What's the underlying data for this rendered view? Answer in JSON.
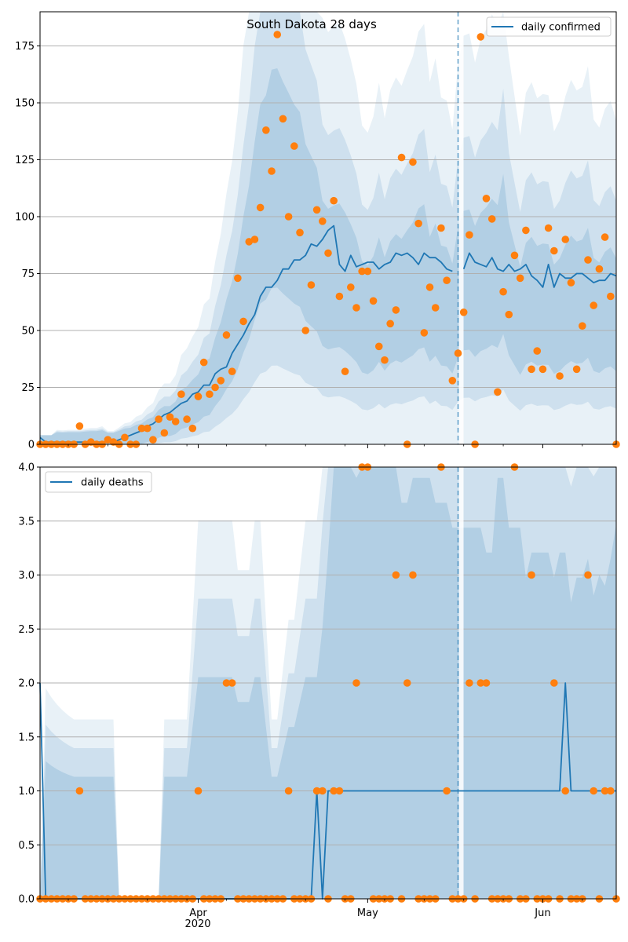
{
  "title": "South Dakota 28 days",
  "colors": {
    "line": "#1f77b4",
    "points": "#ff7f0e",
    "band": "#1f77b4",
    "grid": "#b0b0b0",
    "divider": "#1f77b4"
  },
  "x_axis": {
    "ticks": [
      {
        "label": "Apr",
        "day": 28
      },
      {
        "label": "May",
        "day": 58
      },
      {
        "label": "Jun",
        "day": 89
      }
    ],
    "year_label": "2020",
    "range_days": [
      0,
      102
    ],
    "divider_day": 74
  },
  "chart_data": [
    {
      "type": "line",
      "title": "South Dakota 28 days",
      "legend": "daily confirmed",
      "legend_position": "top-right",
      "grid": true,
      "ylim": [
        0,
        190
      ],
      "yticks": [
        "0",
        "25",
        "50",
        "75",
        "100",
        "125",
        "150",
        "175"
      ],
      "ytick_values": [
        0,
        25,
        50,
        75,
        100,
        125,
        150,
        175
      ],
      "series": [
        {
          "name": "daily confirmed",
          "type": "line",
          "x": [
            0,
            1,
            2,
            3,
            4,
            5,
            6,
            7,
            8,
            9,
            10,
            11,
            12,
            13,
            14,
            15,
            16,
            17,
            18,
            19,
            20,
            21,
            22,
            23,
            24,
            25,
            26,
            27,
            28,
            29,
            30,
            31,
            32,
            33,
            34,
            35,
            36,
            37,
            38,
            39,
            40,
            41,
            42,
            43,
            44,
            45,
            46,
            47,
            48,
            49,
            50,
            51,
            52,
            53,
            54,
            55,
            56,
            57,
            58,
            59,
            60,
            61,
            62,
            63,
            64,
            65,
            66,
            67,
            68,
            69,
            70,
            71,
            72,
            73,
            74,
            null,
            75,
            76,
            77,
            78,
            79,
            80,
            81,
            82,
            83,
            84,
            85,
            86,
            87,
            88,
            89,
            90,
            91,
            92,
            93,
            94,
            95,
            96,
            97,
            98,
            99,
            100,
            101,
            102
          ],
          "y": [
            3,
            1,
            1,
            1,
            1,
            1,
            1,
            1,
            1,
            1,
            1,
            1,
            1,
            1,
            2,
            3,
            4,
            5,
            6,
            8,
            9,
            11,
            13,
            14,
            16,
            18,
            19,
            22,
            23,
            26,
            26,
            31,
            33,
            34,
            40,
            44,
            48,
            53,
            57,
            65,
            69,
            69,
            72,
            77,
            77,
            81,
            81,
            83,
            88,
            87,
            90,
            94,
            96,
            79,
            76,
            83,
            78,
            79,
            80,
            80,
            77,
            79,
            80,
            84,
            83,
            84,
            82,
            79,
            84,
            82,
            82,
            80,
            77,
            76,
            null,
            null,
            77,
            84,
            80,
            79,
            78,
            82,
            77,
            76,
            79,
            76,
            77,
            79,
            74,
            72,
            69,
            79,
            69,
            75,
            73,
            73,
            75,
            75,
            73,
            71,
            72,
            72,
            75,
            74
          ]
        },
        {
          "name": "",
          "type": "scatter",
          "x": [
            0,
            1,
            2,
            3,
            4,
            5,
            6,
            7,
            8,
            9,
            10,
            11,
            12,
            13,
            14,
            15,
            16,
            17,
            18,
            19,
            20,
            21,
            22,
            23,
            24,
            25,
            26,
            27,
            28,
            29,
            30,
            31,
            32,
            33,
            34,
            35,
            36,
            37,
            38,
            39,
            40,
            41,
            42,
            43,
            44,
            45,
            46,
            47,
            48,
            49,
            50,
            51,
            52,
            53,
            54,
            55,
            56,
            57,
            58,
            59,
            60,
            61,
            62,
            63,
            64,
            65,
            66,
            67,
            68,
            69,
            70,
            71,
            72,
            73,
            74,
            75,
            76,
            77,
            78,
            79,
            80,
            81,
            82,
            83,
            84,
            85,
            86,
            87,
            88,
            89,
            90,
            91,
            92,
            93,
            94,
            95,
            96,
            97,
            98,
            99,
            100,
            101,
            102
          ],
          "y": [
            0,
            0,
            0,
            0,
            0,
            0,
            0,
            8,
            0,
            1,
            0,
            0,
            2,
            1,
            0,
            3,
            0,
            0,
            7,
            7,
            2,
            11,
            5,
            12,
            10,
            22,
            11,
            7,
            21,
            36,
            22,
            25,
            28,
            48,
            32,
            73,
            54,
            89,
            90,
            104,
            138,
            120,
            180,
            143,
            100,
            131,
            93,
            50,
            70,
            103,
            98,
            84,
            107,
            65,
            32,
            69,
            60,
            76,
            76,
            63,
            43,
            37,
            53,
            59,
            126,
            0,
            124,
            97,
            49,
            69,
            60,
            95,
            72,
            28,
            40,
            58,
            92,
            0,
            179,
            108,
            99,
            23,
            67,
            57,
            83,
            73,
            94,
            33,
            41,
            33,
            95,
            85,
            30,
            90,
            71,
            33,
            52,
            81,
            61,
            77,
            91,
            65,
            0
          ]
        }
      ]
    },
    {
      "type": "line",
      "legend": "daily deaths",
      "legend_position": "top-left",
      "grid": true,
      "ylim": [
        0,
        4
      ],
      "yticks": [
        "0.0",
        "0.5",
        "1.0",
        "1.5",
        "2.0",
        "2.5",
        "3.0",
        "3.5",
        "4.0"
      ],
      "ytick_values": [
        0,
        0.5,
        1,
        1.5,
        2,
        2.5,
        3,
        3.5,
        4
      ],
      "series": [
        {
          "name": "daily deaths",
          "type": "line",
          "x": [
            0,
            1,
            48,
            49,
            50,
            51,
            52,
            74,
            75,
            77,
            78,
            79,
            80,
            81,
            82,
            83,
            84,
            85,
            86,
            87,
            88,
            89,
            90,
            91,
            92,
            93,
            94,
            95,
            96,
            97,
            98,
            99,
            100,
            101,
            102
          ],
          "y": [
            2,
            0,
            0,
            1,
            0,
            1,
            1,
            1,
            1,
            1,
            1,
            1,
            1,
            1,
            1,
            1,
            1,
            1,
            1,
            1,
            1,
            1,
            1,
            1,
            1,
            2,
            1,
            1,
            1,
            1,
            1,
            1,
            1,
            1,
            1
          ]
        },
        {
          "name": "",
          "type": "scatter",
          "x": [
            0,
            1,
            2,
            3,
            4,
            5,
            6,
            7,
            8,
            9,
            10,
            11,
            12,
            13,
            14,
            15,
            16,
            17,
            18,
            19,
            20,
            21,
            22,
            23,
            24,
            25,
            26,
            27,
            28,
            29,
            30,
            31,
            32,
            33,
            34,
            35,
            36,
            37,
            38,
            39,
            40,
            41,
            42,
            43,
            44,
            45,
            46,
            47,
            48,
            49,
            50,
            51,
            52,
            53,
            54,
            55,
            56,
            57,
            58,
            59,
            60,
            61,
            62,
            63,
            64,
            65,
            66,
            67,
            68,
            69,
            70,
            71,
            72,
            73,
            74,
            75,
            76,
            77,
            78,
            79,
            80,
            81,
            82,
            83,
            84,
            85,
            86,
            87,
            88,
            89,
            90,
            91,
            92,
            93,
            94,
            95,
            96,
            97,
            98,
            99,
            100,
            101,
            102
          ],
          "y": [
            0,
            0,
            0,
            0,
            0,
            0,
            0,
            1,
            0,
            0,
            0,
            0,
            0,
            0,
            0,
            0,
            0,
            0,
            0,
            0,
            0,
            0,
            0,
            0,
            0,
            0,
            0,
            0,
            1,
            0,
            0,
            0,
            0,
            2,
            2,
            0,
            0,
            0,
            0,
            0,
            0,
            0,
            0,
            0,
            1,
            0,
            0,
            0,
            0,
            1,
            1,
            0,
            1,
            1,
            0,
            0,
            2,
            4,
            4,
            0,
            0,
            0,
            0,
            3,
            0,
            2,
            3,
            0,
            0,
            0,
            0,
            4,
            1,
            0,
            0,
            0,
            2,
            0,
            2,
            2,
            0,
            0,
            0,
            0,
            4,
            0,
            0,
            3,
            0,
            0,
            0,
            2,
            0,
            1,
            0,
            0,
            0,
            3,
            1,
            0,
            1,
            1,
            0
          ]
        }
      ]
    }
  ]
}
